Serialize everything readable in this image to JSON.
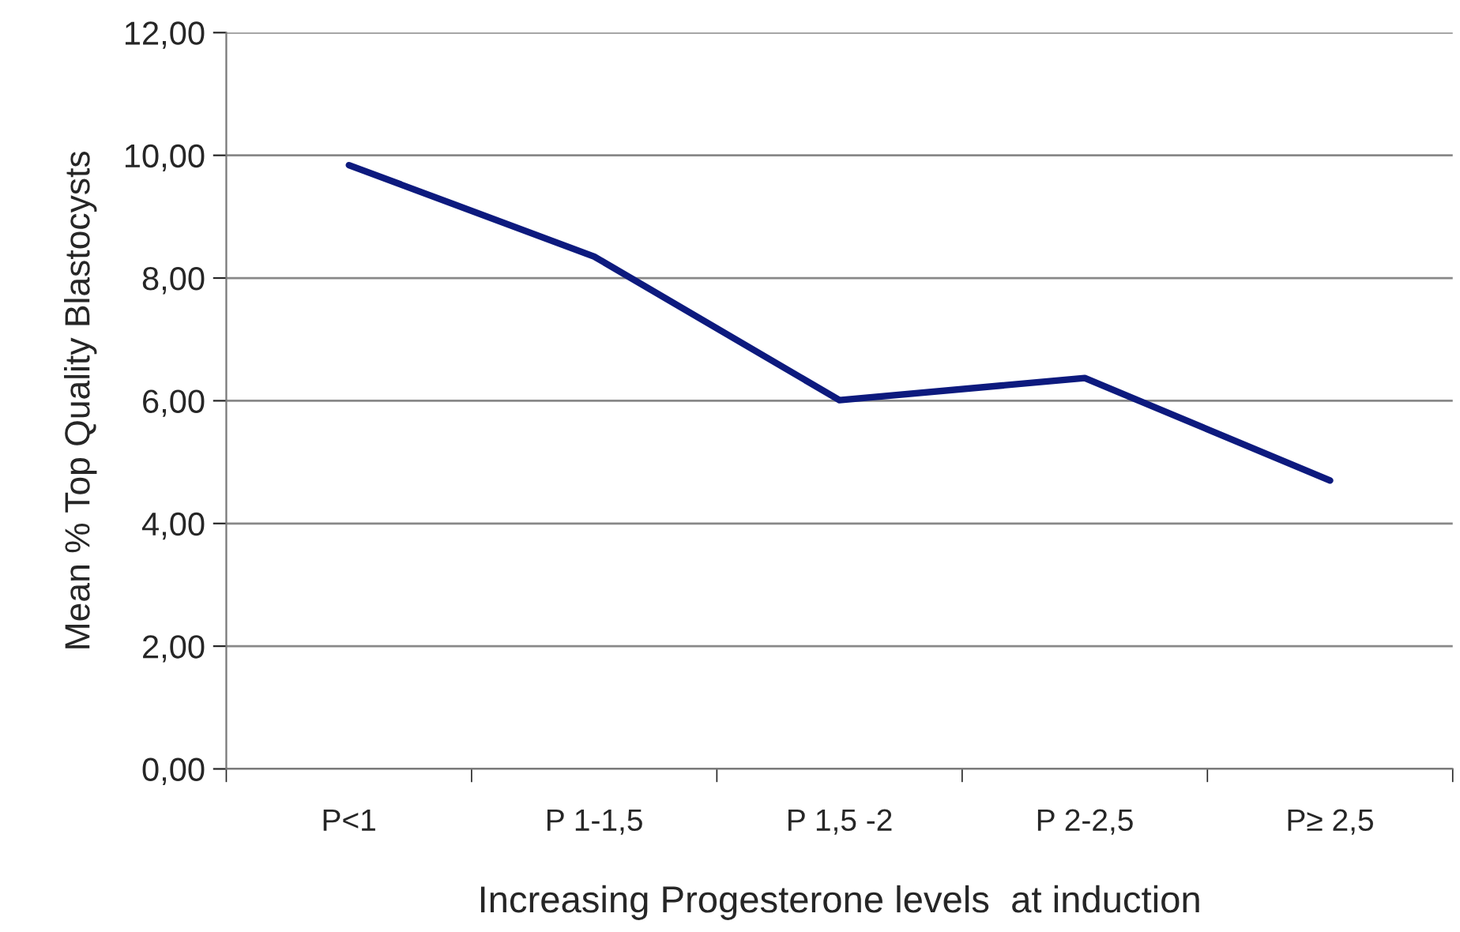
{
  "chart_data": {
    "type": "line",
    "xlabel": "Increasing Progesterone levels  at induction",
    "ylabel": "Mean % Top Quality Blastocysts",
    "categories": [
      "P<1",
      "P 1-1,5",
      "P 1,5 -2",
      "P 2-2,5",
      "P≥ 2,5"
    ],
    "series": [
      {
        "color": "#0d1a7e",
        "values": [
          9.84,
          8.35,
          6.01,
          6.37,
          4.7
        ]
      }
    ],
    "ylim": [
      0,
      12
    ],
    "yticks": [
      {
        "value": 0,
        "label": "0,00"
      },
      {
        "value": 2,
        "label": "2,00"
      },
      {
        "value": 4,
        "label": "4,00"
      },
      {
        "value": 6,
        "label": "6,00"
      },
      {
        "value": 8,
        "label": "8,00"
      },
      {
        "value": 10,
        "label": "10,00"
      },
      {
        "value": 12,
        "label": "12,00"
      }
    ],
    "grid": "y",
    "marker": "none",
    "line_style": "solid",
    "legend": false
  }
}
